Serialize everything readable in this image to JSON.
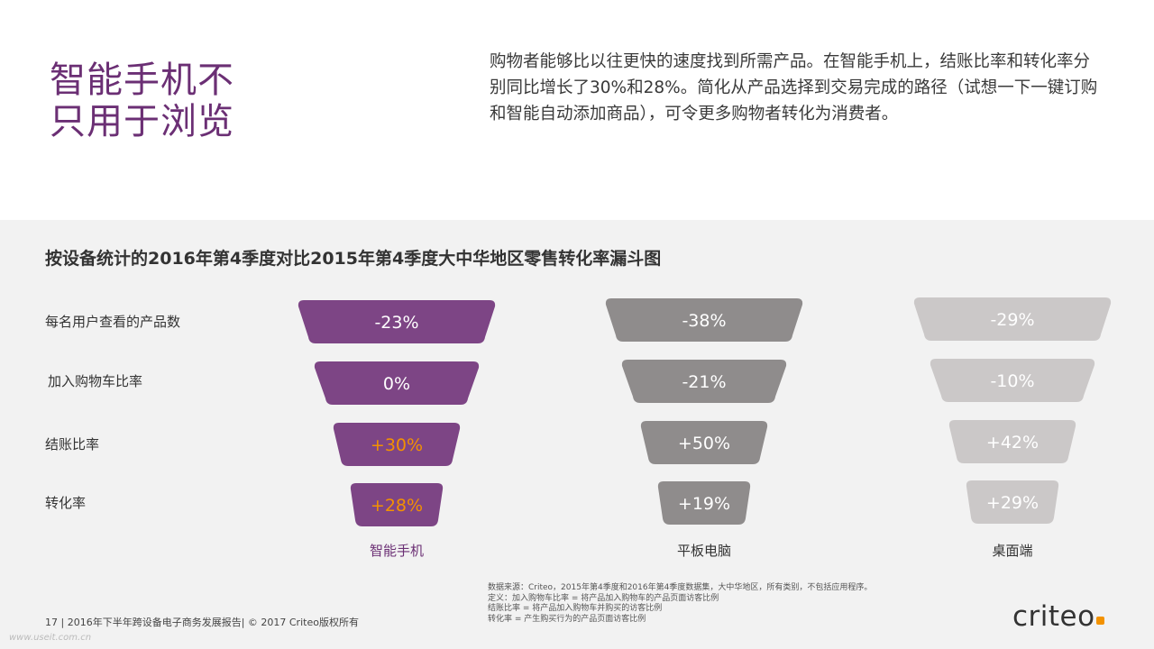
{
  "header": {
    "title_line1": "智能手机不",
    "title_line2": "只用于浏览",
    "description": "购物者能够比以往更快的速度找到所需产品。在智能手机上，结账比率和转化率分别同比增长了30%和28%。简化从产品选择到交易完成的路径（试想一下一键订购和智能自动添加商品），可令更多购物者转化为消费者。"
  },
  "chart_data": {
    "type": "funnel",
    "title": "按设备统计的2016年第4季度对比2015年第4季度大中华地区零售转化率漏斗图",
    "stages": [
      "每名用户查看的产品数",
      "加入购物车比率",
      "结账比率",
      "转化率"
    ],
    "series": [
      {
        "name": "智能手机",
        "values": [
          "-23%",
          "0%",
          "+30%",
          "+28%"
        ],
        "color": "#7d4585",
        "highlight_color": "#f39200",
        "highlight": [
          false,
          false,
          true,
          true
        ]
      },
      {
        "name": "平板电脑",
        "values": [
          "-38%",
          "-21%",
          "+50%",
          "+19%"
        ],
        "color": "#8f8c8c",
        "highlight_color": "#ffffff",
        "highlight": [
          false,
          false,
          false,
          false
        ]
      },
      {
        "name": "桌面端",
        "values": [
          "-29%",
          "-10%",
          "+42%",
          "+29%"
        ],
        "color": "#cbc8c8",
        "highlight_color": "#ffffff",
        "highlight": [
          false,
          false,
          false,
          false
        ]
      }
    ]
  },
  "footer": {
    "page_info": "17 | 2016年下半年跨设备电子商务发展报告| © 2017 Criteo版权所有",
    "notes": [
      "数据来源：Criteo，2015年第4季度和2016年第4季度数据集，大中华地区，所有类别，不包括应用程序。",
      "定义：加入购物车比率 = 将产品加入购物车的产品页面访客比例",
      "结账比率 = 将产品加入购物车并购买的访客比例",
      "转化率 = 产生购买行为的产品页面访客比例"
    ],
    "watermark": "www.useit.com.cn",
    "logo_text": "criteo"
  },
  "colors": {
    "brand_purple": "#6b2f74",
    "accent_orange": "#f39200",
    "band_bg": "#f2f2f2"
  }
}
